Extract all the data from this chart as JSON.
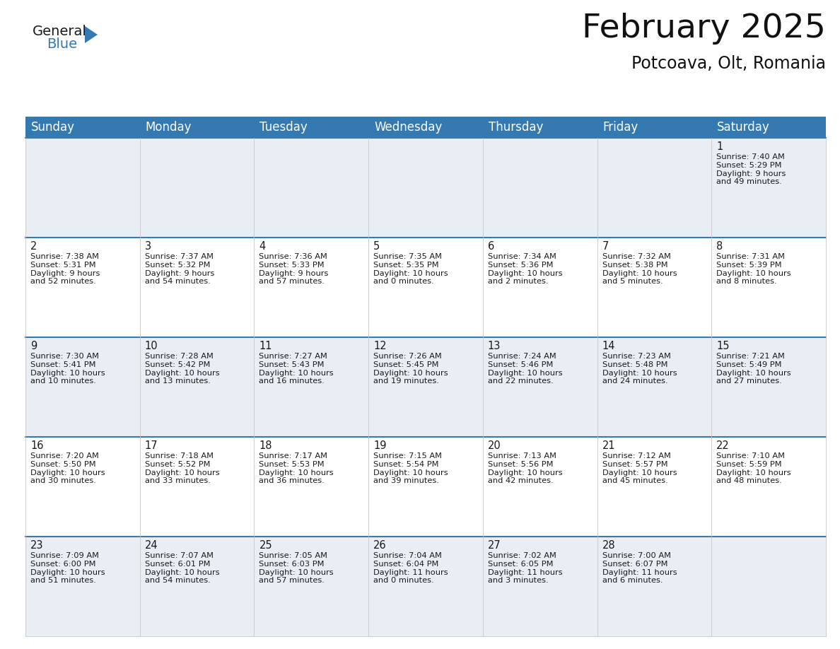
{
  "title": "February 2025",
  "subtitle": "Potcoava, Olt, Romania",
  "header_color": "#3579b1",
  "header_text_color": "#ffffff",
  "background_color": "#ffffff",
  "cell_bg_light": "#e8eef4",
  "cell_bg_white": "#ffffff",
  "border_color": "#cccccc",
  "blue_line_color": "#3579b1",
  "day_headers": [
    "Sunday",
    "Monday",
    "Tuesday",
    "Wednesday",
    "Thursday",
    "Friday",
    "Saturday"
  ],
  "title_fontsize": 34,
  "subtitle_fontsize": 17,
  "header_fontsize": 12,
  "day_num_fontsize": 10.5,
  "info_fontsize": 8.2,
  "logo_general_fontsize": 14,
  "logo_blue_fontsize": 14,
  "weeks": [
    [
      null,
      null,
      null,
      null,
      null,
      null,
      {
        "day": "1",
        "sunrise": "7:40 AM",
        "sunset": "5:29 PM",
        "daylight_line1": "Daylight: 9 hours",
        "daylight_line2": "and 49 minutes."
      }
    ],
    [
      {
        "day": "2",
        "sunrise": "7:38 AM",
        "sunset": "5:31 PM",
        "daylight_line1": "Daylight: 9 hours",
        "daylight_line2": "and 52 minutes."
      },
      {
        "day": "3",
        "sunrise": "7:37 AM",
        "sunset": "5:32 PM",
        "daylight_line1": "Daylight: 9 hours",
        "daylight_line2": "and 54 minutes."
      },
      {
        "day": "4",
        "sunrise": "7:36 AM",
        "sunset": "5:33 PM",
        "daylight_line1": "Daylight: 9 hours",
        "daylight_line2": "and 57 minutes."
      },
      {
        "day": "5",
        "sunrise": "7:35 AM",
        "sunset": "5:35 PM",
        "daylight_line1": "Daylight: 10 hours",
        "daylight_line2": "and 0 minutes."
      },
      {
        "day": "6",
        "sunrise": "7:34 AM",
        "sunset": "5:36 PM",
        "daylight_line1": "Daylight: 10 hours",
        "daylight_line2": "and 2 minutes."
      },
      {
        "day": "7",
        "sunrise": "7:32 AM",
        "sunset": "5:38 PM",
        "daylight_line1": "Daylight: 10 hours",
        "daylight_line2": "and 5 minutes."
      },
      {
        "day": "8",
        "sunrise": "7:31 AM",
        "sunset": "5:39 PM",
        "daylight_line1": "Daylight: 10 hours",
        "daylight_line2": "and 8 minutes."
      }
    ],
    [
      {
        "day": "9",
        "sunrise": "7:30 AM",
        "sunset": "5:41 PM",
        "daylight_line1": "Daylight: 10 hours",
        "daylight_line2": "and 10 minutes."
      },
      {
        "day": "10",
        "sunrise": "7:28 AM",
        "sunset": "5:42 PM",
        "daylight_line1": "Daylight: 10 hours",
        "daylight_line2": "and 13 minutes."
      },
      {
        "day": "11",
        "sunrise": "7:27 AM",
        "sunset": "5:43 PM",
        "daylight_line1": "Daylight: 10 hours",
        "daylight_line2": "and 16 minutes."
      },
      {
        "day": "12",
        "sunrise": "7:26 AM",
        "sunset": "5:45 PM",
        "daylight_line1": "Daylight: 10 hours",
        "daylight_line2": "and 19 minutes."
      },
      {
        "day": "13",
        "sunrise": "7:24 AM",
        "sunset": "5:46 PM",
        "daylight_line1": "Daylight: 10 hours",
        "daylight_line2": "and 22 minutes."
      },
      {
        "day": "14",
        "sunrise": "7:23 AM",
        "sunset": "5:48 PM",
        "daylight_line1": "Daylight: 10 hours",
        "daylight_line2": "and 24 minutes."
      },
      {
        "day": "15",
        "sunrise": "7:21 AM",
        "sunset": "5:49 PM",
        "daylight_line1": "Daylight: 10 hours",
        "daylight_line2": "and 27 minutes."
      }
    ],
    [
      {
        "day": "16",
        "sunrise": "7:20 AM",
        "sunset": "5:50 PM",
        "daylight_line1": "Daylight: 10 hours",
        "daylight_line2": "and 30 minutes."
      },
      {
        "day": "17",
        "sunrise": "7:18 AM",
        "sunset": "5:52 PM",
        "daylight_line1": "Daylight: 10 hours",
        "daylight_line2": "and 33 minutes."
      },
      {
        "day": "18",
        "sunrise": "7:17 AM",
        "sunset": "5:53 PM",
        "daylight_line1": "Daylight: 10 hours",
        "daylight_line2": "and 36 minutes."
      },
      {
        "day": "19",
        "sunrise": "7:15 AM",
        "sunset": "5:54 PM",
        "daylight_line1": "Daylight: 10 hours",
        "daylight_line2": "and 39 minutes."
      },
      {
        "day": "20",
        "sunrise": "7:13 AM",
        "sunset": "5:56 PM",
        "daylight_line1": "Daylight: 10 hours",
        "daylight_line2": "and 42 minutes."
      },
      {
        "day": "21",
        "sunrise": "7:12 AM",
        "sunset": "5:57 PM",
        "daylight_line1": "Daylight: 10 hours",
        "daylight_line2": "and 45 minutes."
      },
      {
        "day": "22",
        "sunrise": "7:10 AM",
        "sunset": "5:59 PM",
        "daylight_line1": "Daylight: 10 hours",
        "daylight_line2": "and 48 minutes."
      }
    ],
    [
      {
        "day": "23",
        "sunrise": "7:09 AM",
        "sunset": "6:00 PM",
        "daylight_line1": "Daylight: 10 hours",
        "daylight_line2": "and 51 minutes."
      },
      {
        "day": "24",
        "sunrise": "7:07 AM",
        "sunset": "6:01 PM",
        "daylight_line1": "Daylight: 10 hours",
        "daylight_line2": "and 54 minutes."
      },
      {
        "day": "25",
        "sunrise": "7:05 AM",
        "sunset": "6:03 PM",
        "daylight_line1": "Daylight: 10 hours",
        "daylight_line2": "and 57 minutes."
      },
      {
        "day": "26",
        "sunrise": "7:04 AM",
        "sunset": "6:04 PM",
        "daylight_line1": "Daylight: 11 hours",
        "daylight_line2": "and 0 minutes."
      },
      {
        "day": "27",
        "sunrise": "7:02 AM",
        "sunset": "6:05 PM",
        "daylight_line1": "Daylight: 11 hours",
        "daylight_line2": "and 3 minutes."
      },
      {
        "day": "28",
        "sunrise": "7:00 AM",
        "sunset": "6:07 PM",
        "daylight_line1": "Daylight: 11 hours",
        "daylight_line2": "and 6 minutes."
      },
      null
    ]
  ]
}
